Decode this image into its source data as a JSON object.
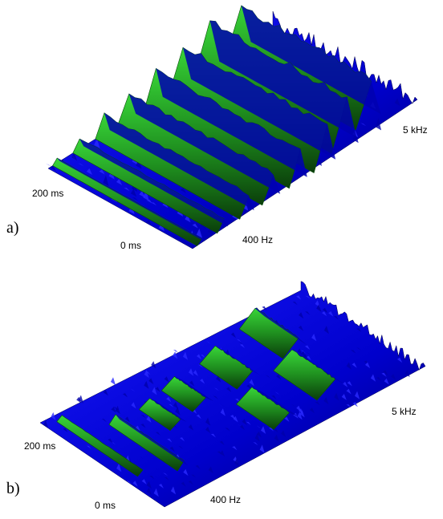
{
  "panels": [
    {
      "label": "a)",
      "time_labels": [
        "200 ms",
        "0 ms"
      ],
      "frequency_labels": [
        "400 Hz",
        "5 kHz"
      ]
    },
    {
      "label": "b)",
      "time_labels": [
        "200 ms",
        "0 ms"
      ],
      "frequency_labels": [
        "400 Hz",
        "5 kHz"
      ]
    }
  ]
}
